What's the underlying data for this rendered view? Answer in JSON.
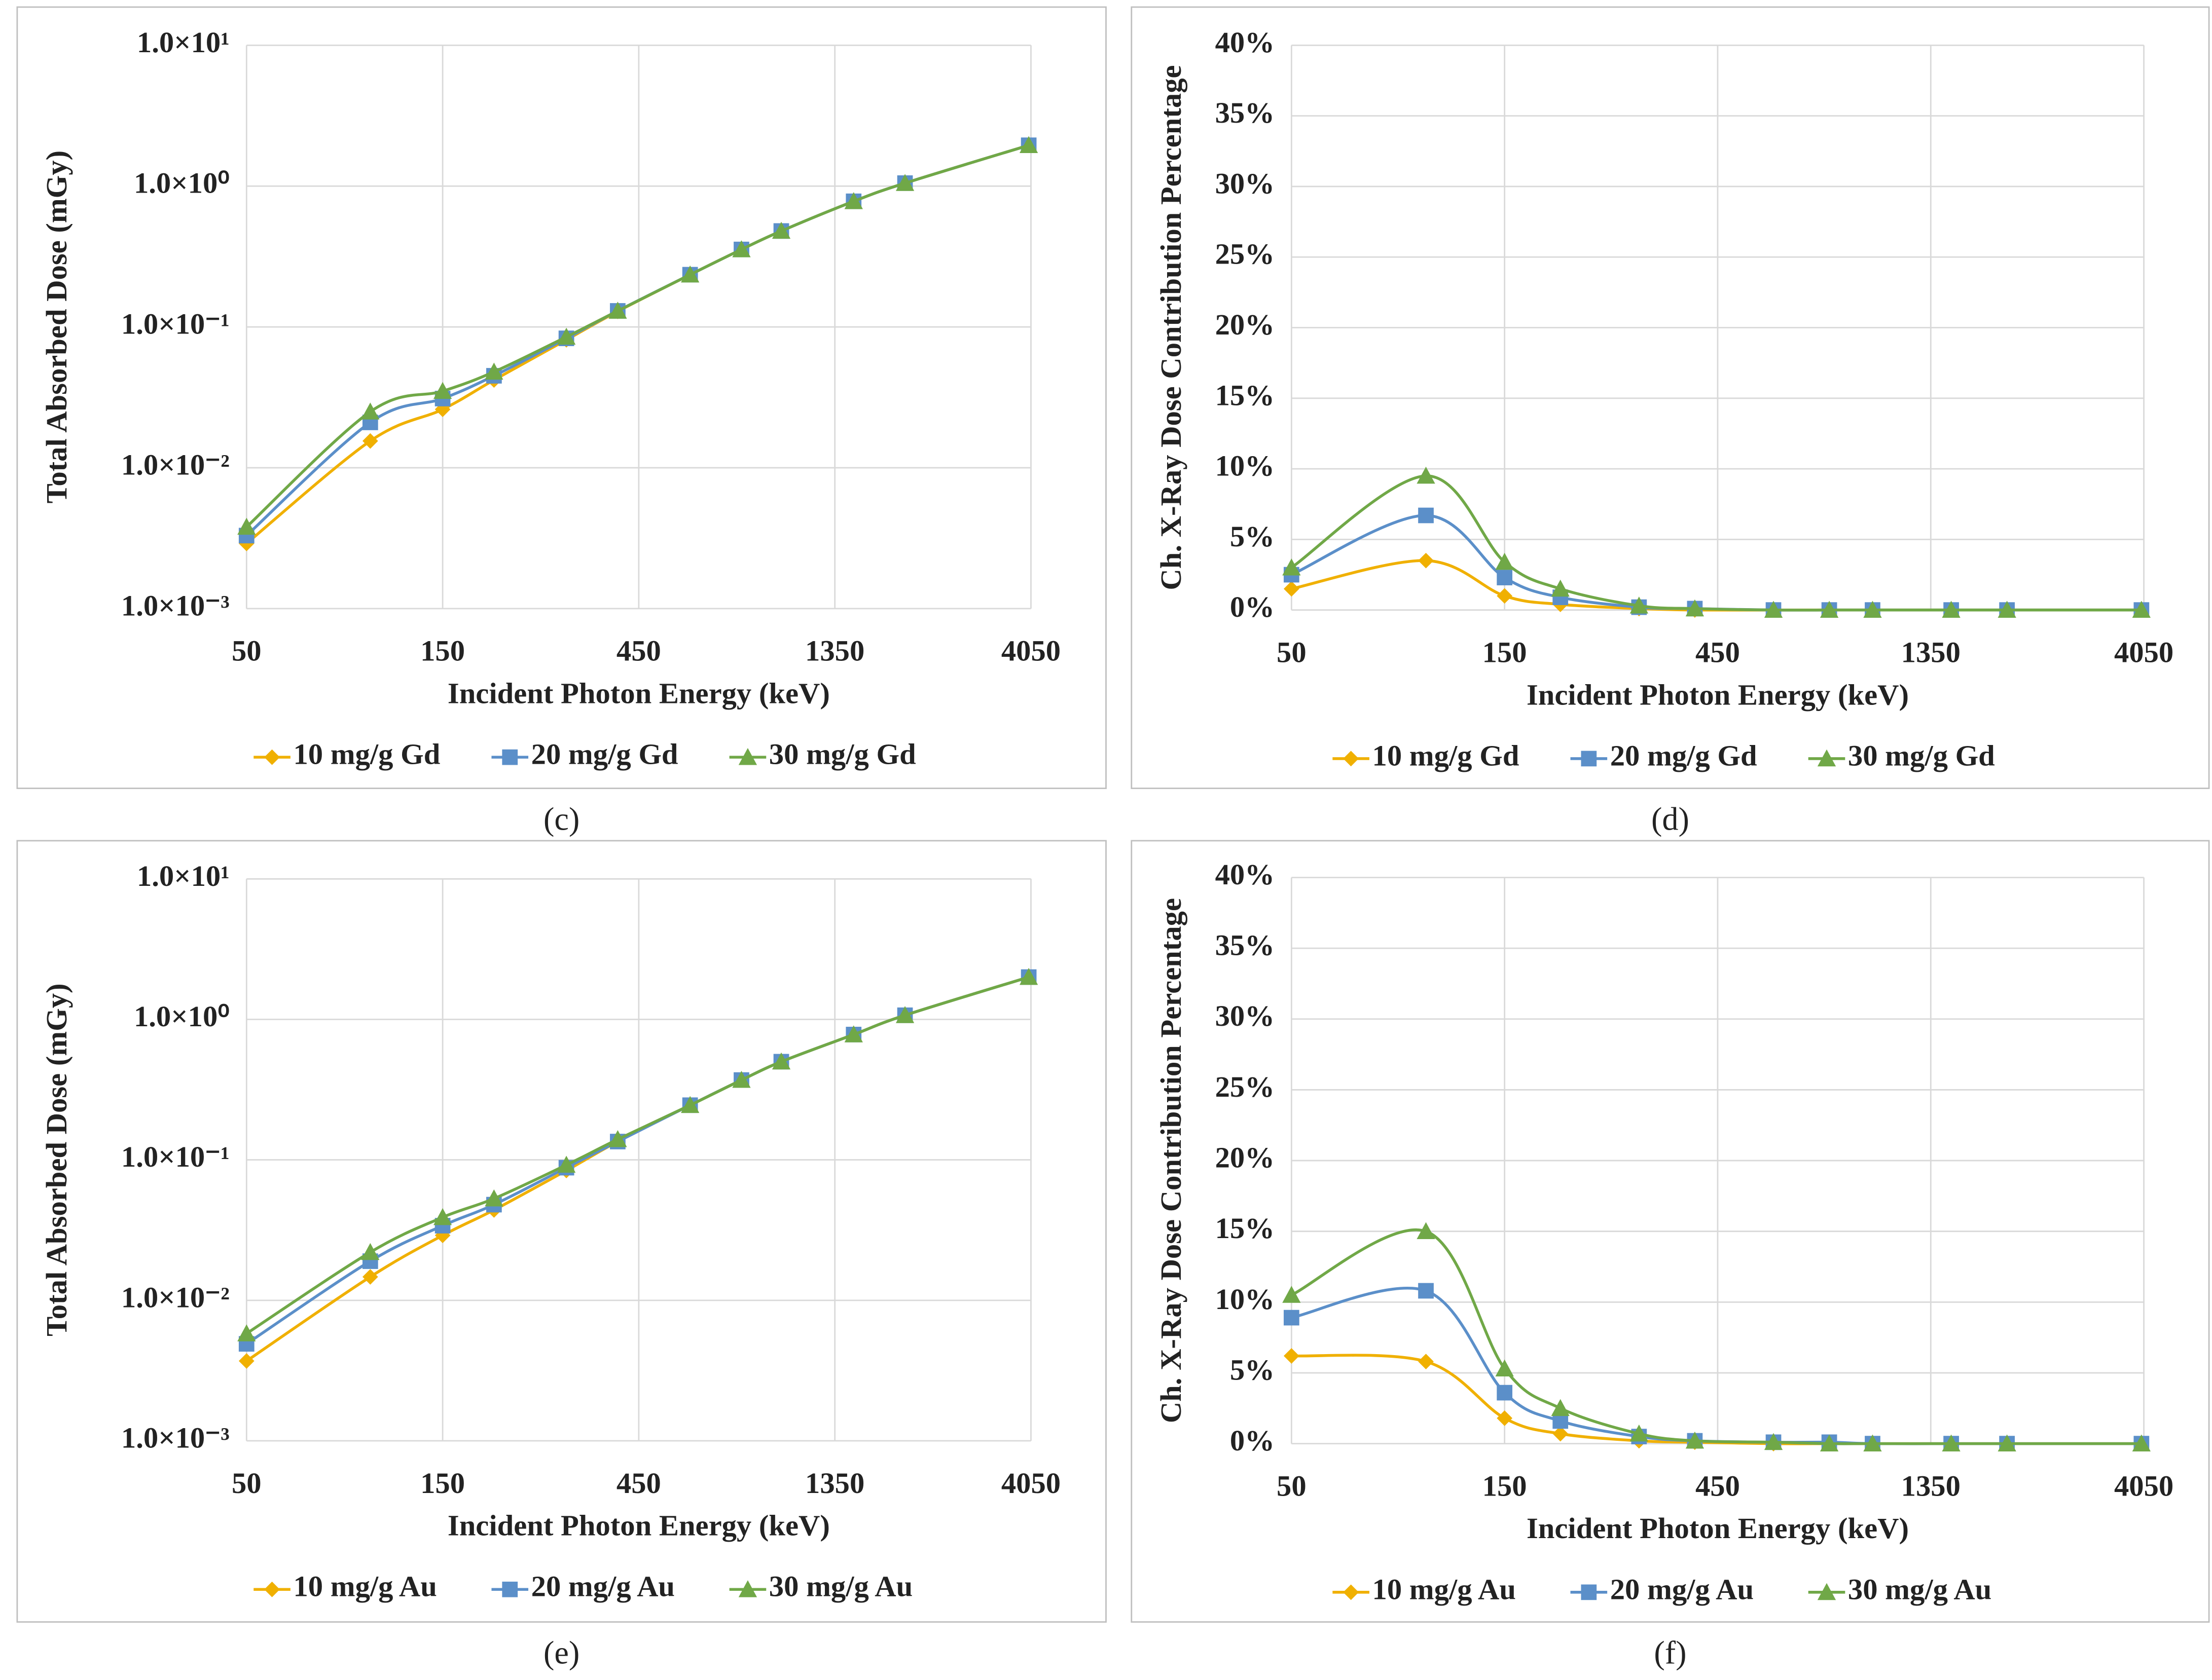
{
  "chart_data": [
    {
      "type": "line",
      "caption": "(c)",
      "xlabel": "Incident Photon Energy (keV)",
      "ylabel": "Total Absorbed Dose (mGy)",
      "x": [
        50,
        100,
        150,
        200,
        300,
        400,
        600,
        800,
        1000,
        1500,
        2000,
        4000
      ],
      "xscale": "log",
      "xlim": [
        50,
        4050
      ],
      "xticks": [
        50,
        150,
        450,
        1350,
        4050
      ],
      "yscale": "log",
      "ylim": [
        0.001,
        10
      ],
      "yticks": [
        {
          "value": 0.001,
          "label": "1.0×10⁻³"
        },
        {
          "value": 0.01,
          "label": "1.0×10⁻²"
        },
        {
          "value": 0.1,
          "label": "1.0×10⁻¹"
        },
        {
          "value": 1,
          "label": "1.0×10⁰"
        },
        {
          "value": 10,
          "label": "1.0×10¹"
        }
      ],
      "grid": true,
      "legend": "bottom",
      "series": [
        {
          "name": "10 mg/g Gd",
          "color": "#f0b000",
          "marker": "diamond",
          "values": [
            0.0029,
            0.0155,
            0.026,
            0.042,
            0.081,
            0.129,
            0.235,
            0.355,
            0.48,
            0.78,
            1.05,
            1.95
          ]
        },
        {
          "name": "20 mg/g Gd",
          "color": "#5b8fc9",
          "marker": "square",
          "values": [
            0.0033,
            0.021,
            0.031,
            0.045,
            0.083,
            0.13,
            0.235,
            0.355,
            0.48,
            0.78,
            1.05,
            1.95
          ]
        },
        {
          "name": "30 mg/g Gd",
          "color": "#70a847",
          "marker": "triangle",
          "values": [
            0.0038,
            0.025,
            0.035,
            0.048,
            0.085,
            0.13,
            0.235,
            0.355,
            0.48,
            0.78,
            1.05,
            1.95
          ]
        }
      ]
    },
    {
      "type": "line",
      "caption": "(d)",
      "xlabel": "Incident Photon Energy (keV)",
      "ylabel": "Ch. X-Ray Dose Contribution Percentage",
      "x": [
        50,
        100,
        150,
        200,
        300,
        400,
        600,
        800,
        1000,
        1500,
        2000,
        4000
      ],
      "xscale": "log",
      "xlim": [
        50,
        4050
      ],
      "xticks": [
        50,
        150,
        450,
        1350,
        4050
      ],
      "yscale": "linear",
      "ylim": [
        0,
        40
      ],
      "yticks": [
        {
          "value": 0,
          "label": "0%"
        },
        {
          "value": 5,
          "label": "5%"
        },
        {
          "value": 10,
          "label": "10%"
        },
        {
          "value": 15,
          "label": "15%"
        },
        {
          "value": 20,
          "label": "20%"
        },
        {
          "value": 25,
          "label": "25%"
        },
        {
          "value": 30,
          "label": "30%"
        },
        {
          "value": 35,
          "label": "35%"
        },
        {
          "value": 40,
          "label": "40%"
        }
      ],
      "grid": true,
      "legend": "bottom",
      "series": [
        {
          "name": "10 mg/g Gd",
          "color": "#f0b000",
          "marker": "diamond",
          "values": [
            1.5,
            3.5,
            1.0,
            0.4,
            0.1,
            0,
            0,
            0,
            0,
            0,
            0,
            0
          ]
        },
        {
          "name": "20 mg/g Gd",
          "color": "#5b8fc9",
          "marker": "square",
          "values": [
            2.5,
            6.7,
            2.3,
            0.9,
            0.2,
            0.1,
            0,
            0,
            0,
            0,
            0,
            0
          ]
        },
        {
          "name": "30 mg/g Gd",
          "color": "#70a847",
          "marker": "triangle",
          "values": [
            3.0,
            9.5,
            3.4,
            1.5,
            0.3,
            0.1,
            0,
            0,
            0,
            0,
            0,
            0
          ]
        }
      ]
    },
    {
      "type": "line",
      "caption": "(e)",
      "xlabel": "Incident Photon Energy (keV)",
      "ylabel": "Total Absorbed Dose (mGy)",
      "x": [
        50,
        100,
        150,
        200,
        300,
        400,
        600,
        800,
        1000,
        1500,
        2000,
        4000
      ],
      "xscale": "log",
      "xlim": [
        50,
        4050
      ],
      "xticks": [
        50,
        150,
        450,
        1350,
        4050
      ],
      "yscale": "log",
      "ylim": [
        0.001,
        10
      ],
      "yticks": [
        {
          "value": 0.001,
          "label": "1.0×10⁻³"
        },
        {
          "value": 0.01,
          "label": "1.0×10⁻²"
        },
        {
          "value": 0.1,
          "label": "1.0×10⁻¹"
        },
        {
          "value": 1,
          "label": "1.0×10⁰"
        },
        {
          "value": 10,
          "label": "1.0×10¹"
        }
      ],
      "grid": true,
      "legend": "bottom",
      "series": [
        {
          "name": "10 mg/g Au",
          "color": "#f0b000",
          "marker": "diamond",
          "values": [
            0.0037,
            0.0147,
            0.029,
            0.044,
            0.084,
            0.135,
            0.245,
            0.37,
            0.5,
            0.78,
            1.07,
            2.0
          ]
        },
        {
          "name": "20 mg/g Au",
          "color": "#5b8fc9",
          "marker": "square",
          "values": [
            0.0049,
            0.019,
            0.034,
            0.048,
            0.088,
            0.135,
            0.245,
            0.37,
            0.5,
            0.78,
            1.07,
            2.0
          ]
        },
        {
          "name": "30 mg/g Au",
          "color": "#70a847",
          "marker": "triangle",
          "values": [
            0.0058,
            0.022,
            0.039,
            0.053,
            0.092,
            0.14,
            0.245,
            0.37,
            0.5,
            0.78,
            1.07,
            2.0
          ]
        }
      ]
    },
    {
      "type": "line",
      "caption": "(f)",
      "xlabel": "Incident Photon Energy (keV)",
      "ylabel": "Ch. X-Ray Dose Contribution Percentage",
      "x": [
        50,
        100,
        150,
        200,
        300,
        400,
        600,
        800,
        1000,
        1500,
        2000,
        4000
      ],
      "xscale": "log",
      "xlim": [
        50,
        4050
      ],
      "xticks": [
        50,
        150,
        450,
        1350,
        4050
      ],
      "yscale": "linear",
      "ylim": [
        0,
        40
      ],
      "yticks": [
        {
          "value": 0,
          "label": "0%"
        },
        {
          "value": 5,
          "label": "5%"
        },
        {
          "value": 10,
          "label": "10%"
        },
        {
          "value": 15,
          "label": "15%"
        },
        {
          "value": 20,
          "label": "20%"
        },
        {
          "value": 25,
          "label": "25%"
        },
        {
          "value": 30,
          "label": "30%"
        },
        {
          "value": 35,
          "label": "35%"
        },
        {
          "value": 40,
          "label": "40%"
        }
      ],
      "grid": true,
      "legend": "bottom",
      "series": [
        {
          "name": "10 mg/g Au",
          "color": "#f0b000",
          "marker": "diamond",
          "values": [
            6.2,
            5.8,
            1.8,
            0.7,
            0.2,
            0.1,
            0,
            0,
            0,
            0,
            0,
            0
          ]
        },
        {
          "name": "20 mg/g Au",
          "color": "#5b8fc9",
          "marker": "square",
          "values": [
            8.9,
            10.8,
            3.6,
            1.6,
            0.5,
            0.2,
            0.1,
            0.1,
            0,
            0,
            0,
            0
          ]
        },
        {
          "name": "30 mg/g Au",
          "color": "#70a847",
          "marker": "triangle",
          "values": [
            10.5,
            15.0,
            5.3,
            2.5,
            0.7,
            0.2,
            0.1,
            0,
            0,
            0,
            0,
            0
          ]
        }
      ]
    }
  ]
}
